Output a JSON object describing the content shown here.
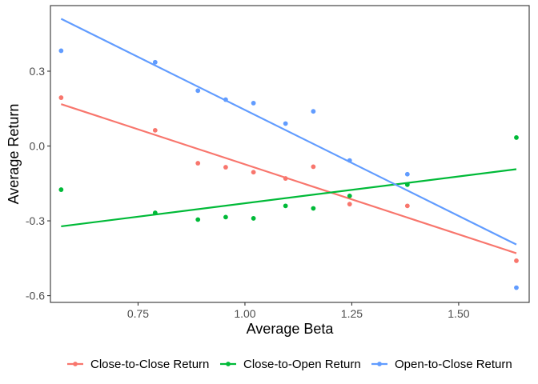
{
  "chart_data": {
    "type": "scatter",
    "xlabel": "Average Beta",
    "ylabel": "Average Return",
    "xlim": [
      0.545,
      1.665
    ],
    "ylim": [
      -0.627,
      0.563
    ],
    "x_ticks": [
      0.75,
      1.0,
      1.25,
      1.5
    ],
    "x_tick_labels": [
      "0.75",
      "1.00",
      "1.25",
      "1.50"
    ],
    "y_ticks": [
      0.3,
      0.0,
      -0.3,
      -0.6
    ],
    "y_tick_labels": [
      "0.3",
      "0.0",
      "-0.3",
      "-0.6"
    ],
    "grid": false,
    "legend_position": "bottom",
    "x": [
      0.57,
      0.79,
      0.89,
      0.955,
      1.02,
      1.095,
      1.16,
      1.245,
      1.38,
      1.635
    ],
    "series": [
      {
        "name": "Close-to-Close Return",
        "color": "#F8766D",
        "values": [
          0.194,
          0.063,
          -0.069,
          -0.085,
          -0.105,
          -0.13,
          -0.083,
          -0.233,
          -0.24,
          -0.46
        ],
        "fit": [
          [
            0.57,
            0.168
          ],
          [
            1.635,
            -0.43
          ]
        ]
      },
      {
        "name": "Close-to-Open Return",
        "color": "#00BA38",
        "values": [
          -0.175,
          -0.268,
          -0.295,
          -0.285,
          -0.29,
          -0.24,
          -0.25,
          -0.2,
          -0.155,
          0.034
        ],
        "fit": [
          [
            0.57,
            -0.322
          ],
          [
            1.635,
            -0.093
          ]
        ]
      },
      {
        "name": "Open-to-Close Return",
        "color": "#619CFF",
        "values": [
          0.382,
          0.336,
          0.222,
          0.186,
          0.172,
          0.09,
          0.139,
          -0.058,
          -0.113,
          -0.568
        ],
        "fit": [
          [
            0.57,
            0.51
          ],
          [
            1.635,
            -0.395
          ]
        ]
      }
    ]
  }
}
